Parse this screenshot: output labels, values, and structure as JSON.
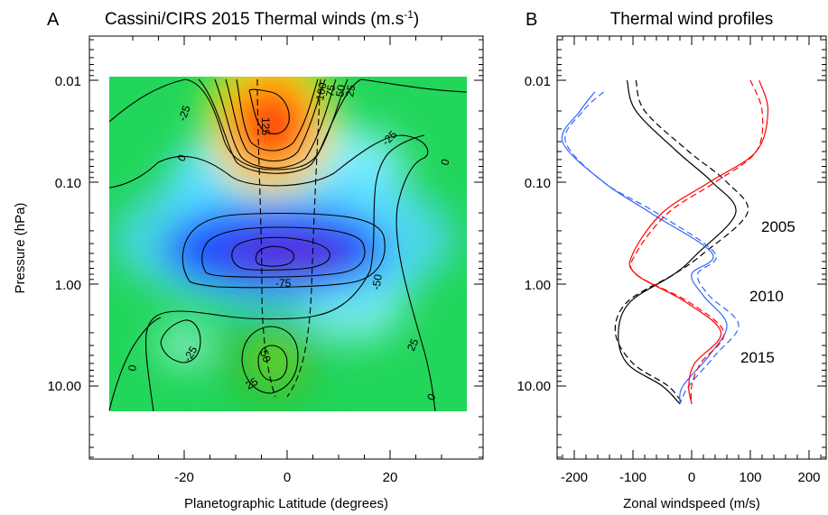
{
  "panel_a": {
    "letter": "A",
    "title": "Cassini/CIRS 2015 Thermal winds (m.s",
    "title_superscript": "-1",
    "title_close": ")",
    "ylabel": "Pressure (hPa)",
    "xlabel": "Planetographic Latitude (degrees)",
    "yticks": [
      "0.01",
      "0.10",
      "1.00",
      "10.00"
    ],
    "xticks": [
      "-20",
      "0",
      "20"
    ],
    "contour_labels": [
      "-25",
      "125",
      "100",
      "75",
      "50",
      "25",
      "0",
      "-25",
      "0",
      "-75",
      "-50",
      "-25",
      "0",
      "50",
      "25",
      "25",
      "0"
    ]
  },
  "panel_b": {
    "letter": "B",
    "title": "Thermal wind profiles",
    "xlabel": "Zonal windspeed (m/s)",
    "yticks": [
      "0.01",
      "0.10",
      "1.00",
      "10.00"
    ],
    "xticks": [
      "-200",
      "-100",
      "0",
      "100",
      "200"
    ],
    "legend": [
      {
        "label": "2005",
        "color": "#000000"
      },
      {
        "label": "2010",
        "color": "#3366ff"
      },
      {
        "label": "2015",
        "color": "#ff0000"
      }
    ]
  },
  "chart_data": [
    {
      "type": "heatmap",
      "title": "Cassini/CIRS 2015 Thermal winds (m.s-1)",
      "xlabel": "Planetographic Latitude (degrees)",
      "ylabel": "Pressure (hPa)",
      "xlim": [
        -36,
        36
      ],
      "ylim": [
        50,
        0.005
      ],
      "y_scale": "log",
      "data_lat_range": [
        -35,
        35
      ],
      "data_pressure_range": [
        0.01,
        20
      ],
      "contour_interval": 25,
      "features": [
        {
          "kind": "max",
          "lat": 0,
          "pressure": 0.03,
          "value": 135
        },
        {
          "kind": "min",
          "lat": 0,
          "pressure": 0.5,
          "value": -90
        },
        {
          "kind": "max",
          "lat": -2,
          "pressure": 7,
          "value": 55
        },
        {
          "kind": "min",
          "lat": -20,
          "pressure": 4,
          "value": -30
        }
      ],
      "colorscale": [
        "purple",
        "blue",
        "cyan",
        "green",
        "yellow",
        "orange",
        "red"
      ]
    },
    {
      "type": "line",
      "title": "Thermal wind profiles",
      "xlabel": "Zonal windspeed (m/s)",
      "xlim": [
        -230,
        230
      ],
      "ylim": [
        50,
        0.005
      ],
      "y_scale": "log",
      "series": [
        {
          "name": "2005",
          "color": "#000000",
          "style": "solid",
          "pressure": [
            0.01,
            0.02,
            0.05,
            0.1,
            0.2,
            0.5,
            0.8,
            1.5,
            3,
            6,
            10,
            15
          ],
          "wind": [
            -110,
            -95,
            -25,
            35,
            75,
            10,
            -30,
            -105,
            -125,
            -110,
            -50,
            -20
          ]
        },
        {
          "name": "2005",
          "color": "#000000",
          "style": "dashed",
          "pressure": [
            0.01,
            0.02,
            0.05,
            0.1,
            0.2,
            0.5,
            0.8,
            1.5,
            3,
            6,
            10,
            15
          ],
          "wind": [
            -95,
            -80,
            -5,
            60,
            95,
            20,
            -30,
            -110,
            -130,
            -100,
            -40,
            -15
          ]
        },
        {
          "name": "2010",
          "color": "#3366ff",
          "style": "solid",
          "pressure": [
            0.013,
            0.02,
            0.04,
            0.1,
            0.2,
            0.5,
            0.8,
            1.3,
            2.5,
            5,
            10,
            15
          ],
          "wind": [
            -165,
            -190,
            -220,
            -150,
            -70,
            35,
            0,
            20,
            60,
            30,
            -15,
            -20
          ]
        },
        {
          "name": "2010",
          "color": "#3366ff",
          "style": "dashed",
          "pressure": [
            0.013,
            0.02,
            0.04,
            0.1,
            0.2,
            0.5,
            0.8,
            1.3,
            2.5,
            5,
            10,
            15
          ],
          "wind": [
            -150,
            -185,
            -215,
            -150,
            -60,
            40,
            10,
            30,
            80,
            40,
            -5,
            -20
          ]
        },
        {
          "name": "2015",
          "color": "#ff0000",
          "style": "solid",
          "pressure": [
            0.01,
            0.02,
            0.05,
            0.1,
            0.2,
            0.5,
            0.8,
            1.5,
            3,
            6,
            10,
            15
          ],
          "wind": [
            115,
            130,
            110,
            30,
            -50,
            -100,
            -95,
            -10,
            50,
            5,
            -5,
            0
          ]
        },
        {
          "name": "2015",
          "color": "#ff0000",
          "style": "dashed",
          "pressure": [
            0.01,
            0.02,
            0.05,
            0.1,
            0.2,
            0.5,
            0.8,
            1.5,
            3,
            6,
            10,
            15
          ],
          "wind": [
            100,
            120,
            110,
            40,
            -40,
            -95,
            -95,
            -5,
            55,
            15,
            0,
            0
          ]
        }
      ]
    }
  ]
}
